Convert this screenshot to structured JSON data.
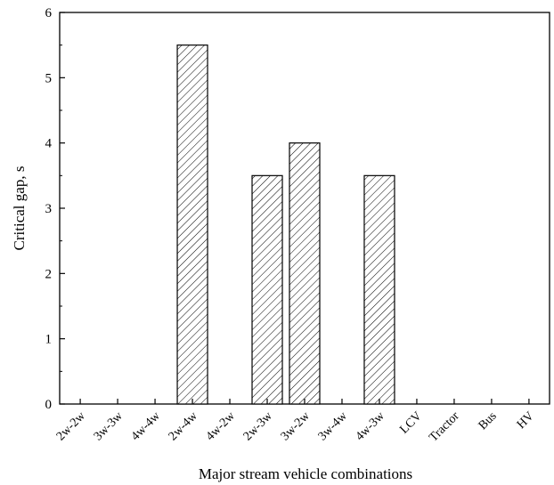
{
  "chart_data": {
    "type": "bar",
    "xlabel": "Major stream vehicle combinations",
    "ylabel": "Critical gap, s",
    "ylim": [
      0,
      6
    ],
    "yticks": [
      "0",
      "1",
      "2",
      "3",
      "4",
      "5",
      "6"
    ],
    "grid": false,
    "legend": "none",
    "bar_fill": "diagonal hatch",
    "categories": [
      "2w-2w",
      "3w-3w",
      "4w-4w",
      "2w-4w",
      "4w-2w",
      "2w-3w",
      "3w-2w",
      "3w-4w",
      "4w-3w",
      "LCV",
      "Tractor",
      "Bus",
      "HV"
    ],
    "values": [
      0,
      0,
      0,
      5.5,
      0,
      3.5,
      4.0,
      0,
      3.5,
      0,
      0,
      0,
      0
    ]
  },
  "colors": {
    "axis": "#000000",
    "bar_stroke": "#000000",
    "hatch": "#000000",
    "background": "#ffffff"
  }
}
